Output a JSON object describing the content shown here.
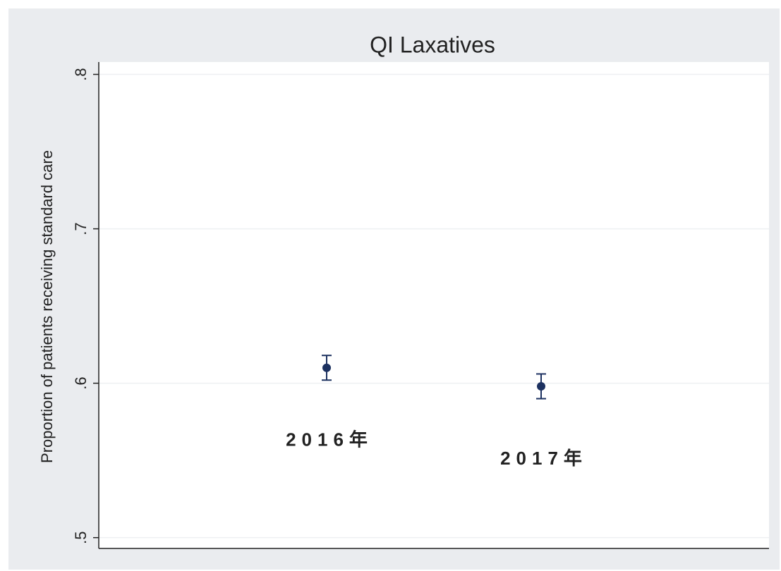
{
  "chart_data": {
    "type": "scatter",
    "title": "QI Laxatives",
    "ylabel": "Proportion of patients receiving standard care",
    "categories": [
      "2016年",
      "2017年"
    ],
    "series": [
      {
        "color": "#1c3160",
        "values": [
          0.61,
          0.598
        ],
        "errors": [
          0.008,
          0.008
        ]
      }
    ],
    "ylim": [
      0.493,
      0.808
    ],
    "yticks": [
      {
        "value": 0.5,
        "label": ".5"
      },
      {
        "value": 0.6,
        "label": ".6"
      },
      {
        "value": 0.7,
        "label": ".7"
      },
      {
        "value": 0.8,
        "label": ".8"
      }
    ],
    "grid": true
  }
}
